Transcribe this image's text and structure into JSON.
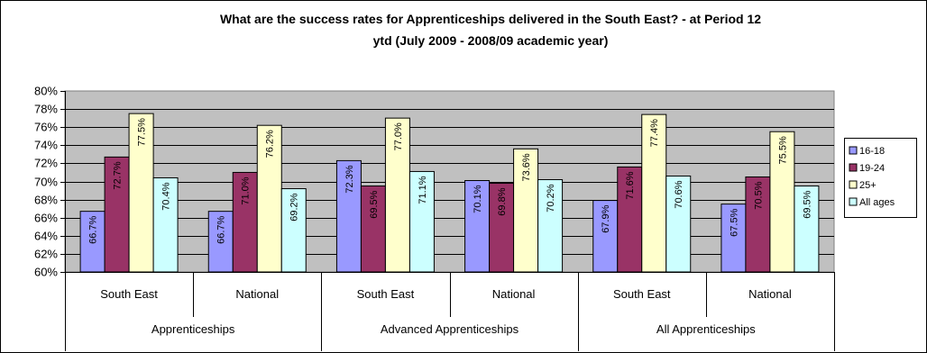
{
  "chart_data": {
    "type": "bar",
    "title_line1": "What are the success rates for Apprenticeships delivered in the South East?  - at Period 12",
    "title_line2": "ytd (July 2009 - 2008/09 academic year)",
    "groups": [
      {
        "label": "Apprenticeships",
        "categories": [
          "South East",
          "National"
        ]
      },
      {
        "label": "Advanced Apprenticeships",
        "categories": [
          "South East",
          "National"
        ]
      },
      {
        "label": "All Apprenticeships",
        "categories": [
          "South East",
          "National"
        ]
      }
    ],
    "series": [
      {
        "name": "16-18",
        "color": "#9999ff",
        "values": [
          66.7,
          66.7,
          72.3,
          70.1,
          67.9,
          67.5
        ],
        "labels": [
          "66.7%",
          "66.7%",
          "72.3%",
          "70.1%",
          "67.9%",
          "67.5%"
        ]
      },
      {
        "name": "19-24",
        "color": "#993366",
        "values": [
          72.7,
          71.0,
          69.5,
          69.8,
          71.6,
          70.5
        ],
        "labels": [
          "72.7%",
          "71.0%",
          "69.5%",
          "69.8%",
          "71.6%",
          "70.5%"
        ]
      },
      {
        "name": "25+",
        "color": "#ffffcc",
        "values": [
          77.5,
          76.2,
          77.0,
          73.6,
          77.4,
          75.5
        ],
        "labels": [
          "77.5%",
          "76.2%",
          "77.0%",
          "73.6%",
          "77.4%",
          "75.5%"
        ]
      },
      {
        "name": "All ages",
        "color": "#ccffff",
        "values": [
          70.4,
          69.2,
          71.1,
          70.2,
          70.6,
          69.5
        ],
        "labels": [
          "70.4%",
          "69.2%",
          "71.1%",
          "70.2%",
          "70.6%",
          "69.5%"
        ]
      }
    ],
    "y_ticks": [
      "60%",
      "62%",
      "64%",
      "66%",
      "68%",
      "70%",
      "72%",
      "74%",
      "76%",
      "78%",
      "80%"
    ],
    "ylim": [
      60,
      80
    ],
    "y_step": 2,
    "plot_background": "#c0c0c0",
    "grid": true,
    "legend_position": "right"
  }
}
